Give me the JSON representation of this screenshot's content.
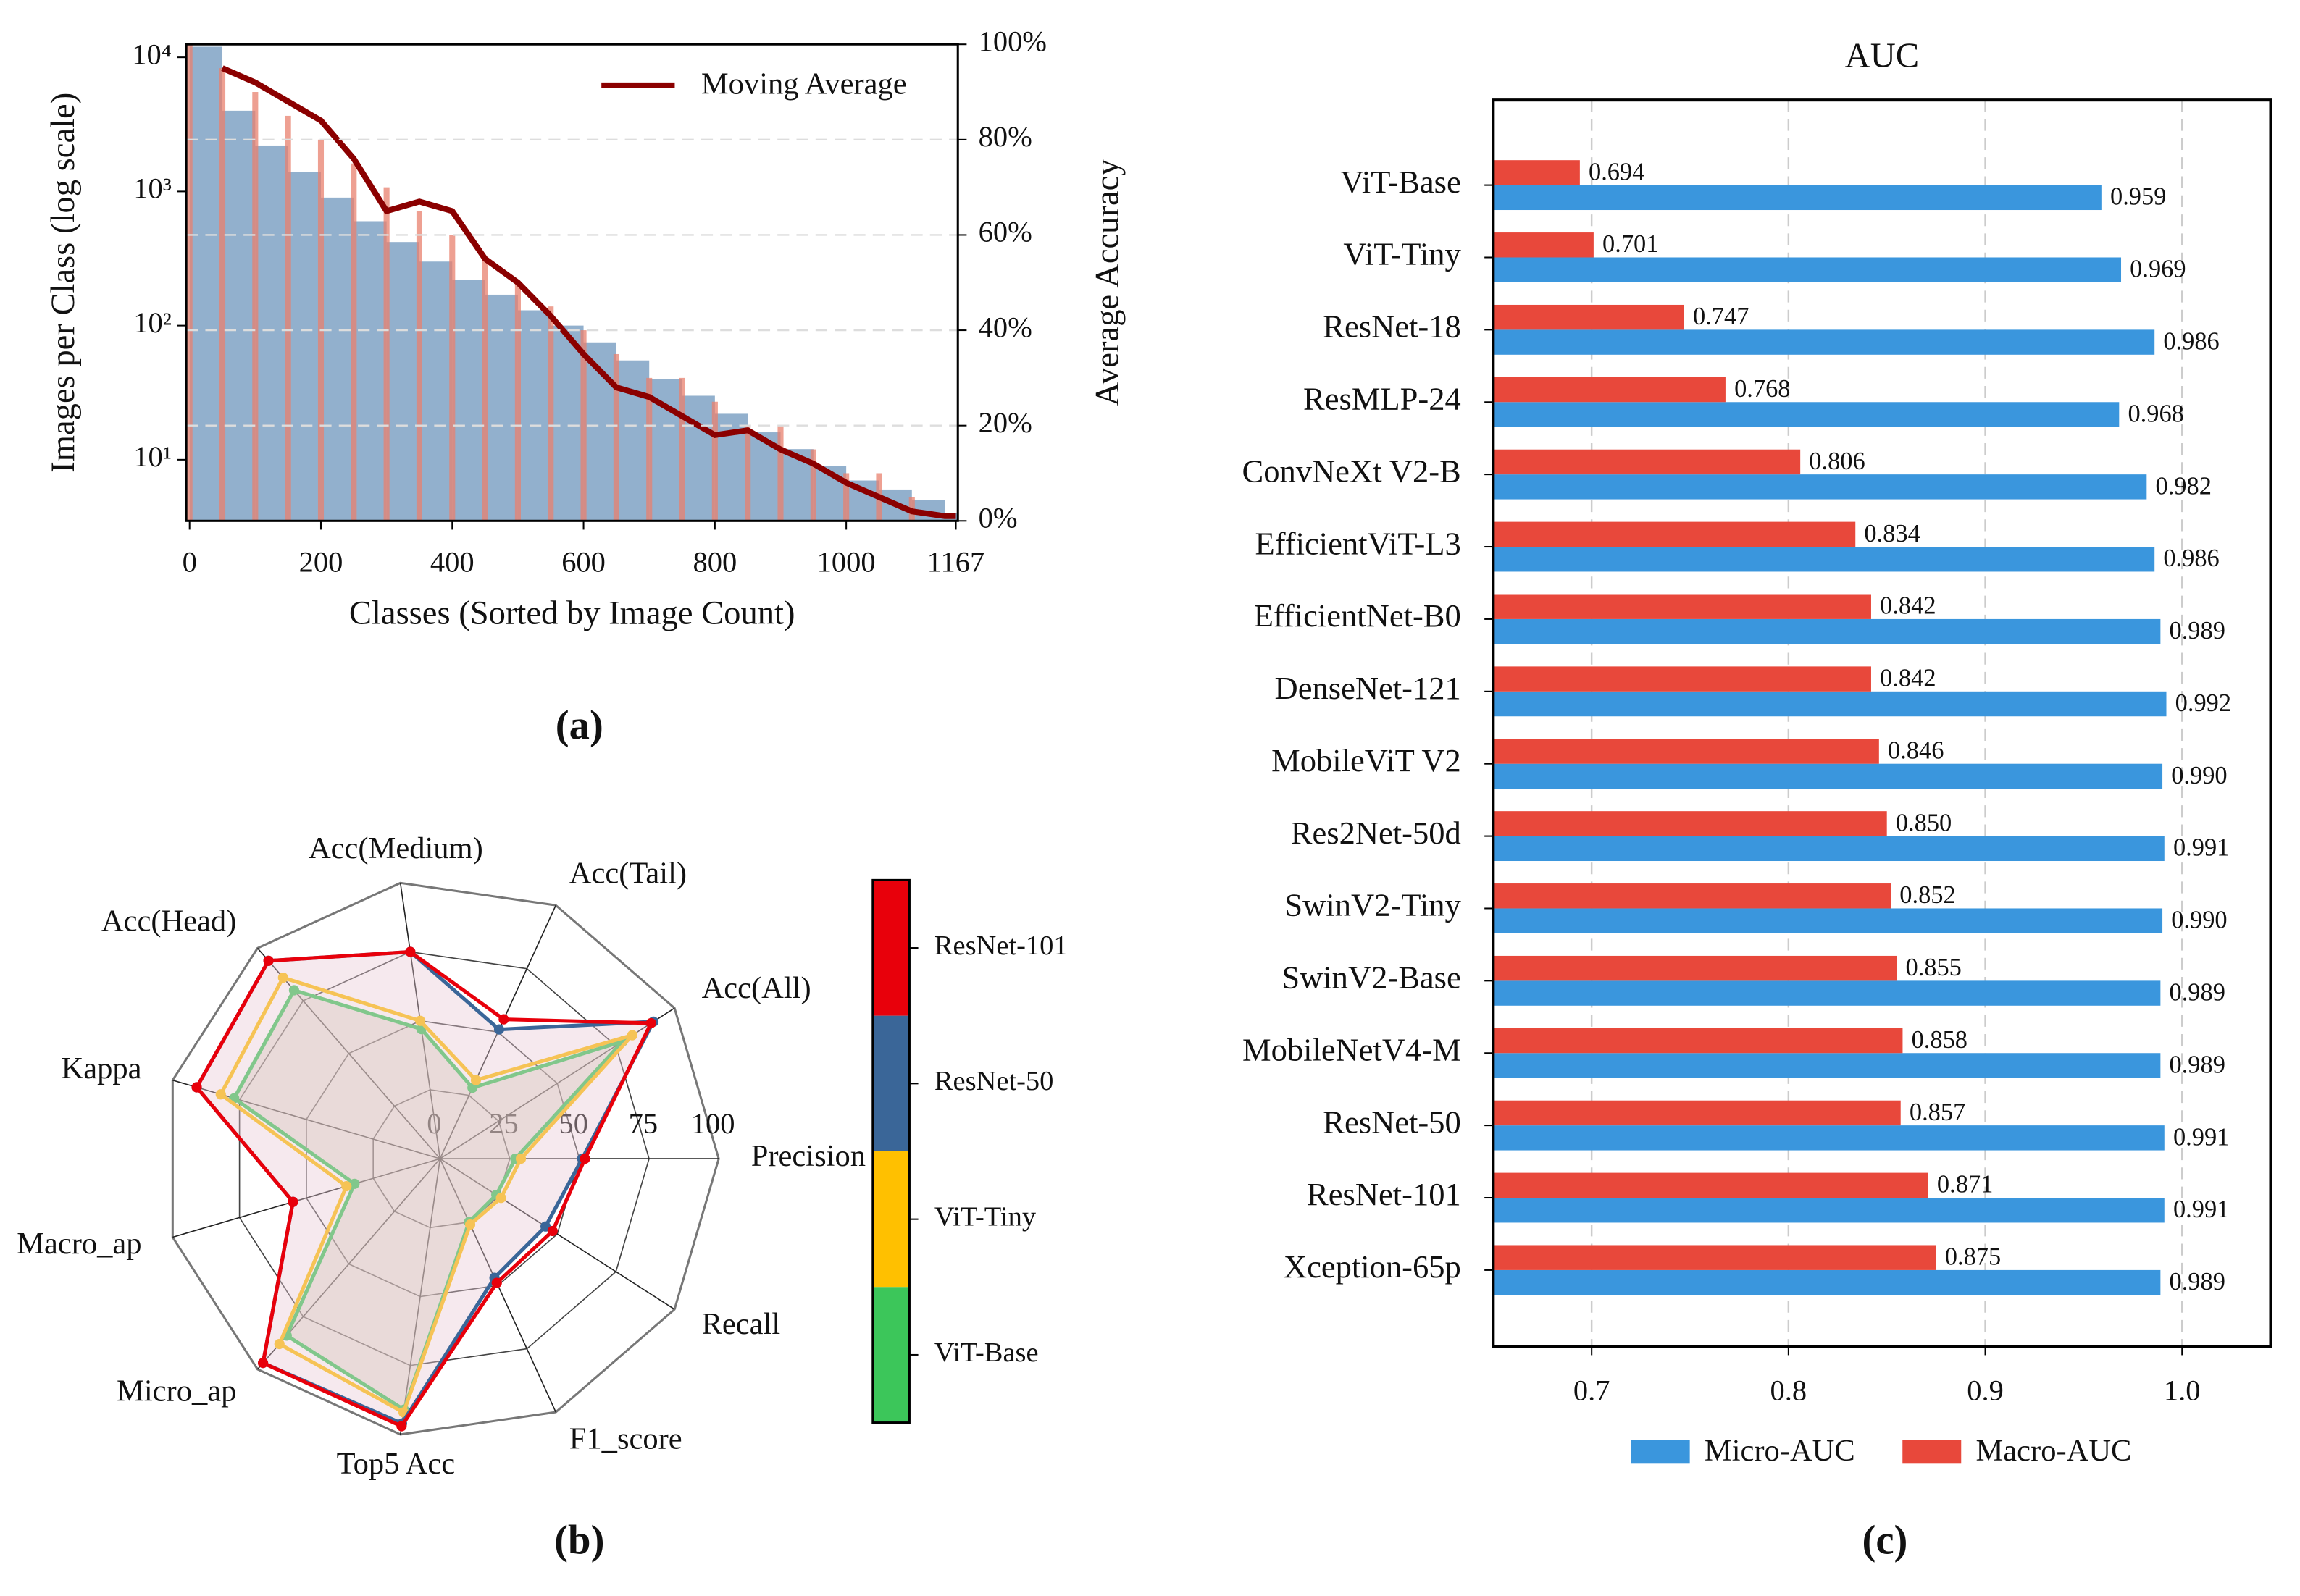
{
  "chart_data": [
    {
      "type": "combo",
      "caption": "(a)",
      "xlabel": "Classes (Sorted by Image Count)",
      "ylabel": "Images per Class (log scale)",
      "y2label": "Average Accuracy",
      "x": [
        0,
        50,
        100,
        150,
        200,
        250,
        300,
        350,
        400,
        450,
        500,
        550,
        600,
        650,
        700,
        750,
        800,
        850,
        900,
        950,
        1000,
        1050,
        1100,
        1150,
        1167
      ],
      "series": [
        {
          "mark": "area",
          "color": "#7fa2c4",
          "values": [
            12000,
            4000,
            2200,
            1400,
            900,
            600,
            420,
            300,
            220,
            170,
            130,
            100,
            75,
            55,
            40,
            30,
            22,
            16,
            12,
            9,
            7,
            6,
            5,
            4,
            4
          ]
        },
        {
          "mark": "bar",
          "axis": "y2",
          "color": "#e8806e",
          "values": [
            100,
            95,
            90,
            85,
            80,
            75,
            70,
            65,
            60,
            55,
            50,
            45,
            40,
            35,
            30,
            30,
            25,
            20,
            20,
            15,
            10,
            10,
            5,
            0,
            0
          ]
        },
        {
          "mark": "line",
          "name": "Moving Average",
          "axis": "y2",
          "color": "#8b0000",
          "x": [
            50,
            100,
            150,
            200,
            250,
            300,
            350,
            400,
            450,
            500,
            550,
            600,
            650,
            700,
            750,
            800,
            850,
            900,
            950,
            1000,
            1050,
            1100,
            1150,
            1167
          ],
          "values": [
            95,
            92,
            88,
            84,
            76,
            65,
            67,
            65,
            55,
            50,
            43,
            35,
            28,
            26,
            22,
            18,
            19,
            15,
            12,
            8,
            5,
            2,
            1,
            1
          ]
        }
      ],
      "xlim": [
        -5,
        1170
      ],
      "xticks": [
        0,
        200,
        400,
        600,
        800,
        1000,
        1167
      ],
      "log_y": true,
      "ylim": [
        3.5,
        12500
      ],
      "yticks": [
        {
          "value": 10,
          "label": "10¹"
        },
        {
          "value": 100,
          "label": "10²"
        },
        {
          "value": 1000,
          "label": "10³"
        },
        {
          "value": 10000,
          "label": "10⁴"
        }
      ],
      "y2lim": [
        0,
        100
      ],
      "y2ticks": [
        {
          "value": 0,
          "label": "0%"
        },
        {
          "value": 20,
          "label": "20%"
        },
        {
          "value": 40,
          "label": "40%"
        },
        {
          "value": 60,
          "label": "60%"
        },
        {
          "value": 80,
          "label": "80%"
        },
        {
          "value": 100,
          "label": "100%"
        }
      ],
      "y2grid": true,
      "legend": "upper right"
    },
    {
      "type": "radar",
      "caption": "(b)",
      "categories": [
        "Precision",
        "Acc(All)",
        "Acc(Tail)",
        "Acc(Medium)",
        "Acc(Head)",
        "Kappa",
        "Macro_ap",
        "Micro_ap",
        "Top5 Acc",
        "F1_score",
        "Recall"
      ],
      "rlim": [
        0,
        100
      ],
      "rticks": [
        0,
        25,
        50,
        75,
        100
      ],
      "series": [
        {
          "name": "ResNet-101",
          "color": "#e8000b",
          "values": [
            52,
            90,
            55,
            75,
            94,
            91,
            55,
            97,
            97,
            49,
            48
          ]
        },
        {
          "name": "ResNet-50",
          "color": "#3a6698",
          "values": [
            51,
            91,
            51,
            75,
            94,
            91,
            55,
            97,
            96,
            47,
            45
          ]
        },
        {
          "name": "ViT-Tiny",
          "color": "#ffc000",
          "values": [
            29,
            82,
            31,
            50,
            86,
            82,
            35,
            88,
            92,
            26,
            26
          ]
        },
        {
          "name": "ViT-Base",
          "color": "#3cc65a",
          "values": [
            27,
            78,
            28,
            47,
            80,
            77,
            32,
            84,
            91,
            25,
            24
          ]
        }
      ],
      "legend": "right colorbar"
    },
    {
      "type": "barh",
      "caption": "(c)",
      "title": "AUC",
      "categories": [
        "ViT-Base",
        "ViT-Tiny",
        "ResNet-18",
        "ResMLP-24",
        "ConvNeXt V2-B",
        "EfficientViT-L3",
        "EfficientNet-B0",
        "DenseNet-121",
        "MobileViT V2",
        "Res2Net-50d",
        "SwinV2-Tiny",
        "SwinV2-Base",
        "MobileNetV4-M",
        "ResNet-50",
        "ResNet-101",
        "Xception-65p"
      ],
      "series": [
        {
          "name": "Micro-AUC",
          "color": "#3a96dd",
          "values": [
            0.959,
            0.969,
            0.986,
            0.968,
            0.982,
            0.986,
            0.989,
            0.992,
            0.99,
            0.991,
            0.99,
            0.989,
            0.989,
            0.991,
            0.991,
            0.989
          ],
          "value_labels": [
            "0.959",
            "0.969",
            "0.986",
            "0.968",
            "0.982",
            "0.986",
            "0.989",
            "0.992",
            "0.990",
            "0.991",
            "0.990",
            "0.989",
            "0.989",
            "0.991",
            "0.991",
            "0.989"
          ]
        },
        {
          "name": "Macro-AUC",
          "color": "#e8483b",
          "values": [
            0.694,
            0.701,
            0.747,
            0.768,
            0.806,
            0.834,
            0.842,
            0.842,
            0.846,
            0.85,
            0.852,
            0.855,
            0.858,
            0.857,
            0.871,
            0.875
          ],
          "value_labels": [
            "0.694",
            "0.701",
            "0.747",
            "0.768",
            "0.806",
            "0.834",
            "0.842",
            "0.842",
            "0.846",
            "0.850",
            "0.852",
            "0.855",
            "0.858",
            "0.857",
            "0.871",
            "0.875"
          ]
        }
      ],
      "xlim": [
        0.65,
        1.045
      ],
      "xticks": [
        0.7,
        0.8,
        0.9,
        {
          "value": 1.0,
          "label": "1.0"
        }
      ],
      "grid": true,
      "legend": "lower center"
    }
  ]
}
